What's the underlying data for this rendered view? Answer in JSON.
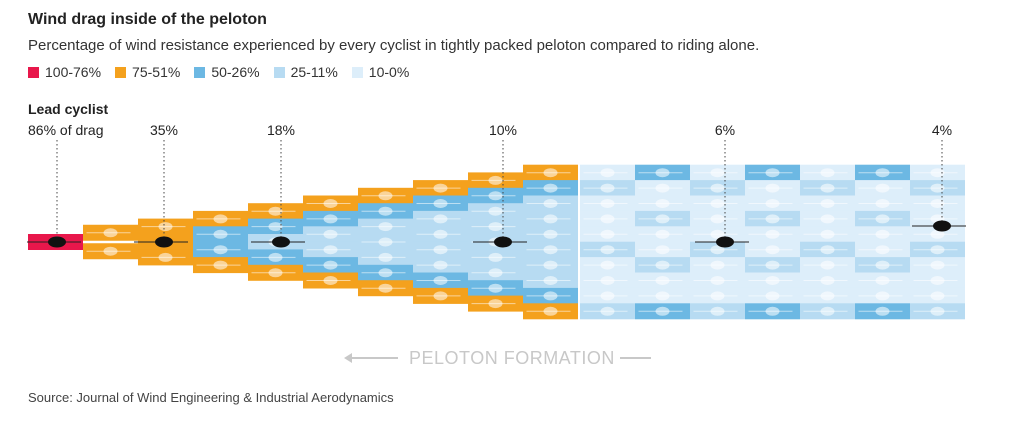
{
  "title": "Wind drag inside of the peloton",
  "subtitle": "Percentage of wind resistance experienced by every cyclist in tightly packed peloton compared to riding alone.",
  "legend": [
    {
      "label": "100-76%",
      "color": "#e8174b"
    },
    {
      "label": "75-51%",
      "color": "#f4a11d"
    },
    {
      "label": "50-26%",
      "color": "#6cb8e3"
    },
    {
      "label": "25-11%",
      "color": "#b7dbf2"
    },
    {
      "label": "10-0%",
      "color": "#ddeefa"
    }
  ],
  "lead": {
    "title": "Lead cyclist",
    "value": "86% of drag"
  },
  "callouts": [
    "35%",
    "18%",
    "10%",
    "6%",
    "4%"
  ],
  "formation_label": "PELOTON FORMATION",
  "source": "Source: Journal of Wind Engineering & Industrial Aerodynamics"
}
